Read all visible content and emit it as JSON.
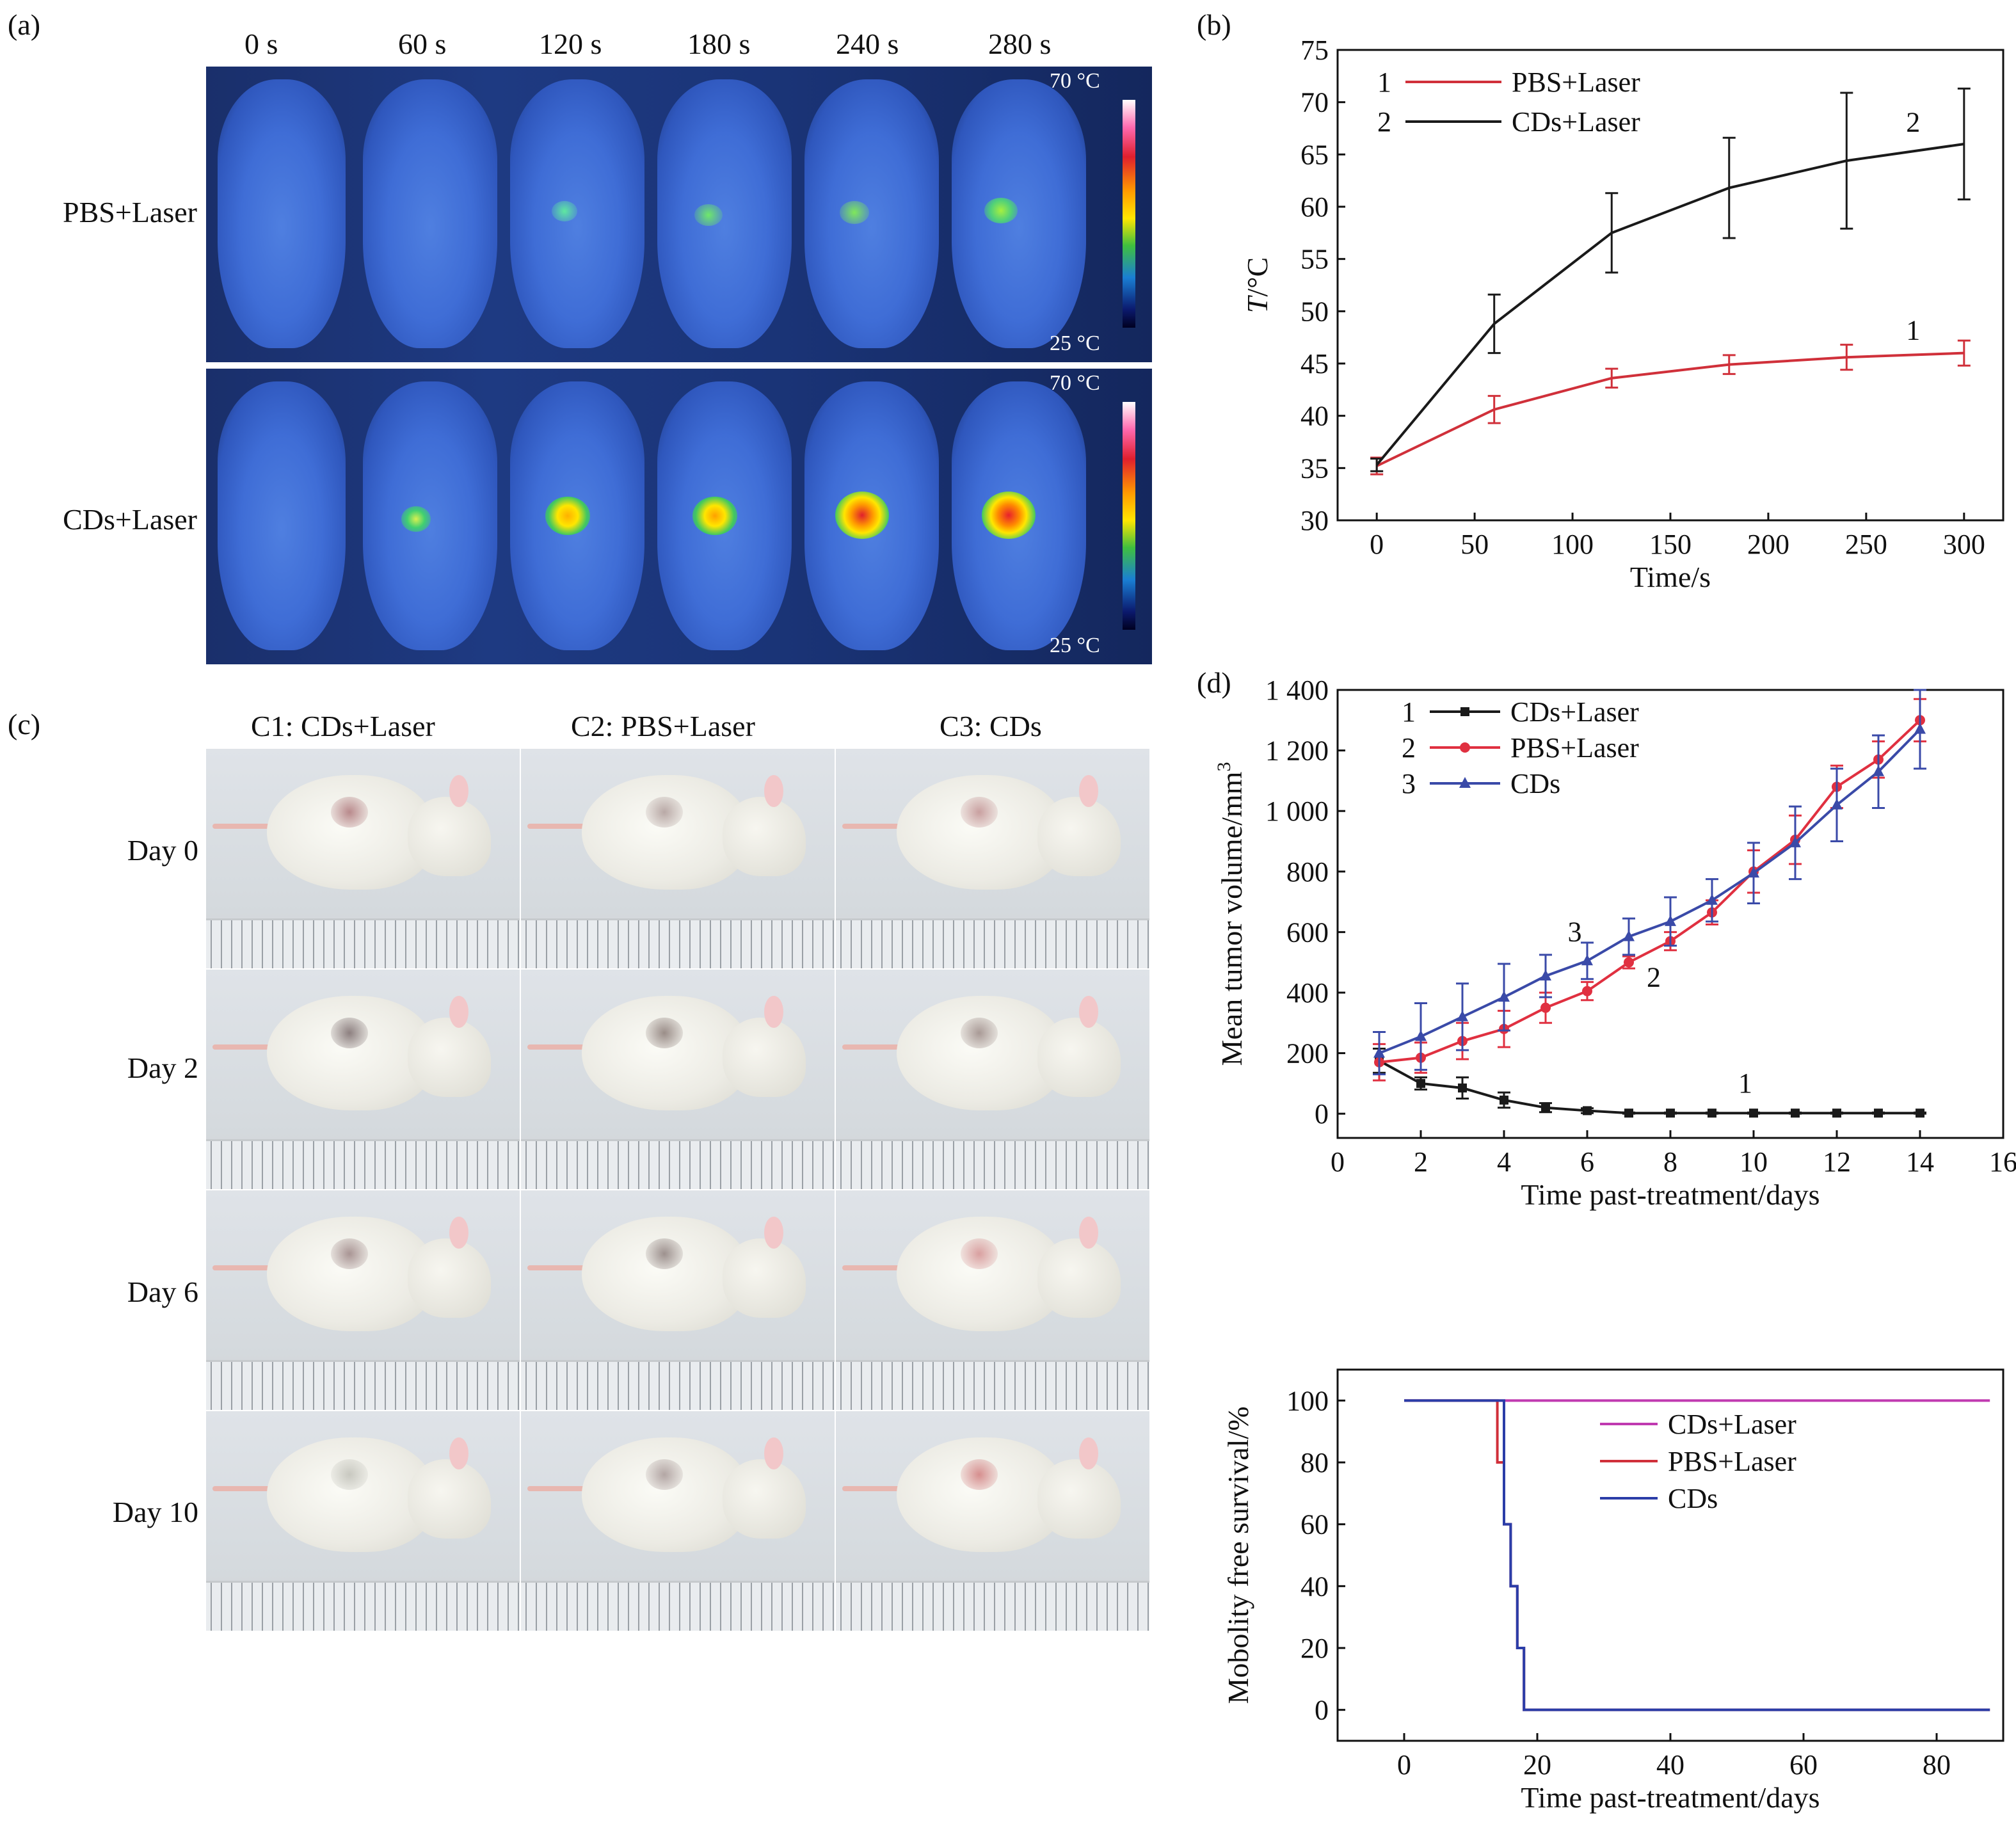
{
  "panel_labels": {
    "a": "(a)",
    "b": "(b)",
    "c": "(c)",
    "d": "(d)"
  },
  "panel_a": {
    "time_labels": [
      "0 s",
      "60 s",
      "120 s",
      "180 s",
      "240 s",
      "280 s"
    ],
    "rows": [
      {
        "label": "PBS+Laser",
        "colorbar_max": "70 °C",
        "colorbar_min": "25 °C"
      },
      {
        "label": "CDs+Laser",
        "colorbar_max": "70 °C",
        "colorbar_min": "25 °C"
      }
    ]
  },
  "panel_c": {
    "columns": [
      "C1: CDs+Laser",
      "C2: PBS+Laser",
      "C3: CDs"
    ],
    "rows": [
      "Day 0",
      "Day 2",
      "Day 6",
      "Day 10"
    ]
  },
  "chart_data": [
    {
      "id": "b",
      "type": "line",
      "xlabel": "Time/s",
      "ylabel": "T/°C",
      "xlim": [
        -20,
        320
      ],
      "ylim": [
        30,
        75
      ],
      "x_ticks": [
        0,
        50,
        100,
        150,
        200,
        250,
        300
      ],
      "y_ticks": [
        30,
        35,
        40,
        45,
        50,
        55,
        60,
        65,
        70,
        75
      ],
      "legend_position": "top-left",
      "series": [
        {
          "name": "PBS+Laser",
          "marker": "1",
          "color": "#d0303a",
          "x": [
            0,
            60,
            120,
            180,
            240,
            300
          ],
          "y": [
            35.2,
            40.6,
            43.6,
            44.9,
            45.6,
            46.0
          ],
          "err": [
            0.8,
            1.3,
            0.9,
            0.9,
            1.2,
            1.2
          ]
        },
        {
          "name": "CDs+Laser",
          "marker": "2",
          "color": "#1a1a1a",
          "x": [
            0,
            60,
            120,
            180,
            240,
            300
          ],
          "y": [
            35.3,
            48.8,
            57.5,
            61.8,
            64.4,
            66.0
          ],
          "err": [
            0.6,
            2.8,
            3.8,
            4.8,
            6.5,
            5.3
          ]
        }
      ]
    },
    {
      "id": "d",
      "type": "line",
      "xlabel": "Time past-treatment/days",
      "ylabel": "Mean tumor volume/mm3",
      "xlim": [
        0,
        16
      ],
      "ylim": [
        -80,
        1400
      ],
      "x_ticks": [
        0,
        2,
        4,
        6,
        8,
        10,
        12,
        14,
        16
      ],
      "y_ticks": [
        0,
        200,
        400,
        600,
        800,
        1000,
        1200,
        1400
      ],
      "y_tick_labels": [
        "0",
        "200",
        "400",
        "600",
        "800",
        "1 000",
        "1 200",
        "1 400"
      ],
      "legend_position": "top-left",
      "series": [
        {
          "name": "CDs+Laser",
          "marker": "1",
          "color": "#1a1a1a",
          "x": [
            1,
            2,
            3,
            4,
            5,
            6,
            7,
            8,
            9,
            10,
            11,
            12,
            13,
            14
          ],
          "y": [
            175,
            100,
            85,
            45,
            20,
            10,
            2,
            2,
            2,
            2,
            2,
            2,
            2,
            2
          ],
          "err": [
            40,
            20,
            35,
            25,
            15,
            8,
            2,
            2,
            2,
            2,
            2,
            2,
            2,
            2
          ]
        },
        {
          "name": "PBS+Laser",
          "marker": "2",
          "color": "#e03040",
          "x": [
            1,
            2,
            3,
            4,
            5,
            6,
            7,
            8,
            9,
            10,
            11,
            12,
            13,
            14
          ],
          "y": [
            170,
            185,
            240,
            280,
            350,
            405,
            500,
            570,
            665,
            800,
            905,
            1080,
            1170,
            1300
          ],
          "err": [
            60,
            50,
            60,
            60,
            50,
            30,
            20,
            30,
            40,
            70,
            80,
            70,
            60,
            70
          ]
        },
        {
          "name": "CDs",
          "marker": "3",
          "color": "#3a4aa8",
          "x": [
            1,
            2,
            3,
            4,
            5,
            6,
            7,
            8,
            9,
            10,
            11,
            12,
            13,
            14
          ],
          "y": [
            200,
            255,
            320,
            385,
            455,
            505,
            585,
            635,
            705,
            795,
            895,
            1020,
            1130,
            1270
          ],
          "err": [
            70,
            110,
            110,
            110,
            70,
            60,
            60,
            80,
            70,
            100,
            120,
            120,
            120,
            130
          ]
        }
      ]
    },
    {
      "id": "e",
      "type": "line",
      "step": true,
      "xlabel": "Time past-treatment/days",
      "ylabel": "Mobolity free survival/%",
      "xlim": [
        -10,
        90
      ],
      "ylim": [
        -10,
        110
      ],
      "x_ticks": [
        0,
        20,
        40,
        60,
        80
      ],
      "y_ticks": [
        0,
        20,
        40,
        60,
        80,
        100
      ],
      "legend_position": "center-right",
      "series": [
        {
          "name": "CDs+Laser",
          "color": "#c03ab0",
          "x": [
            0,
            88
          ],
          "y": [
            100,
            100
          ]
        },
        {
          "name": "PBS+Laser",
          "color": "#d0303a",
          "x": [
            0,
            14,
            15,
            16,
            17,
            18,
            88
          ],
          "y": [
            100,
            80,
            60,
            40,
            20,
            0,
            0
          ]
        },
        {
          "name": "CDs",
          "color": "#2b3da8",
          "x": [
            0,
            15,
            16,
            17,
            18,
            88
          ],
          "y": [
            100,
            60,
            40,
            20,
            0,
            0
          ]
        }
      ]
    }
  ]
}
